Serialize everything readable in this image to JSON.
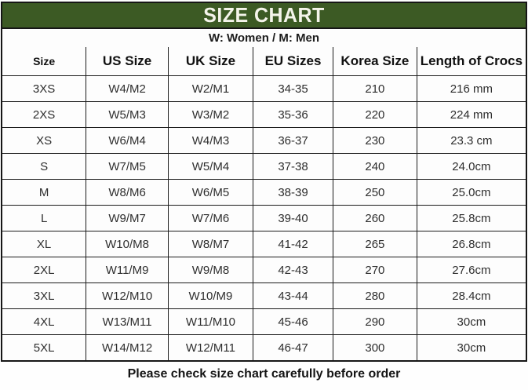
{
  "title": "SIZE CHART",
  "subtitle": "W: Women / M: Men",
  "footer": "Please check size chart carefully before order",
  "colors": {
    "title_bar_background": "#3c5a24",
    "title_text": "#f4f4ea",
    "border": "#1b1b1b",
    "cell_text": "#2e2e2e",
    "background": "#fdfdfd"
  },
  "chart_data": {
    "type": "table",
    "title": "SIZE CHART",
    "subtitle": "W: Women / M: Men",
    "columns": [
      "Size",
      "US Size",
      "UK Size",
      "EU Sizes",
      "Korea Size",
      "Length of Crocs"
    ],
    "rows": [
      [
        "3XS",
        "W4/M2",
        "W2/M1",
        "34-35",
        "210",
        "216 mm"
      ],
      [
        "2XS",
        "W5/M3",
        "W3/M2",
        "35-36",
        "220",
        "224 mm"
      ],
      [
        "XS",
        "W6/M4",
        "W4/M3",
        "36-37",
        "230",
        "23.3 cm"
      ],
      [
        "S",
        "W7/M5",
        "W5/M4",
        "37-38",
        "240",
        "24.0cm"
      ],
      [
        "M",
        "W8/M6",
        "W6/M5",
        "38-39",
        "250",
        "25.0cm"
      ],
      [
        "L",
        "W9/M7",
        "W7/M6",
        "39-40",
        "260",
        "25.8cm"
      ],
      [
        "XL",
        "W10/M8",
        "W8/M7",
        "41-42",
        "265",
        "26.8cm"
      ],
      [
        "2XL",
        "W11/M9",
        "W9/M8",
        "42-43",
        "270",
        "27.6cm"
      ],
      [
        "3XL",
        "W12/M10",
        "W10/M9",
        "43-44",
        "280",
        "28.4cm"
      ],
      [
        "4XL",
        "W13/M11",
        "W11/M10",
        "45-46",
        "290",
        "30cm"
      ],
      [
        "5XL",
        "W14/M12",
        "W12/M11",
        "46-47",
        "300",
        "30cm"
      ]
    ],
    "note": "Please check size chart carefully before order",
    "layout": {
      "column_width_percent": [
        16.0,
        15.7,
        16.2,
        15.3,
        16.0,
        20.8
      ],
      "grid": true,
      "legend_position": "none"
    }
  }
}
